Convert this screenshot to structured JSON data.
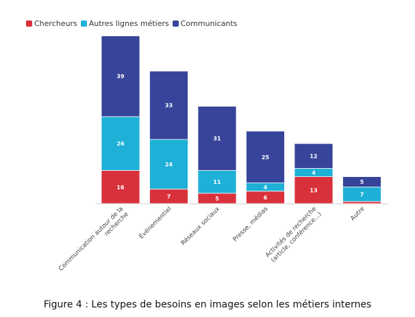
{
  "chart_data": {
    "type": "bar",
    "stacked": true,
    "categories": [
      "Communication autour de la recherche",
      "Événementiel",
      "Réseaux sociaux",
      "Presse, médias",
      "Activités de recherche (article, conférence...)",
      "Autre"
    ],
    "series": [
      {
        "name": "Chercheurs",
        "color": "#d9313b",
        "values": [
          16,
          7,
          5,
          6,
          13,
          1
        ]
      },
      {
        "name": "Autres lignes métiers",
        "color": "#1eb0d6",
        "values": [
          26,
          24,
          11,
          4,
          4,
          7
        ]
      },
      {
        "name": "Communicants",
        "color": "#37449a",
        "values": [
          39,
          33,
          31,
          25,
          12,
          5
        ]
      }
    ],
    "ylim": [
      0,
      81
    ],
    "grid": false,
    "legend_position": "top-left",
    "caption": "Figure 4 : Les types de besoins en images selon les métiers internes"
  }
}
